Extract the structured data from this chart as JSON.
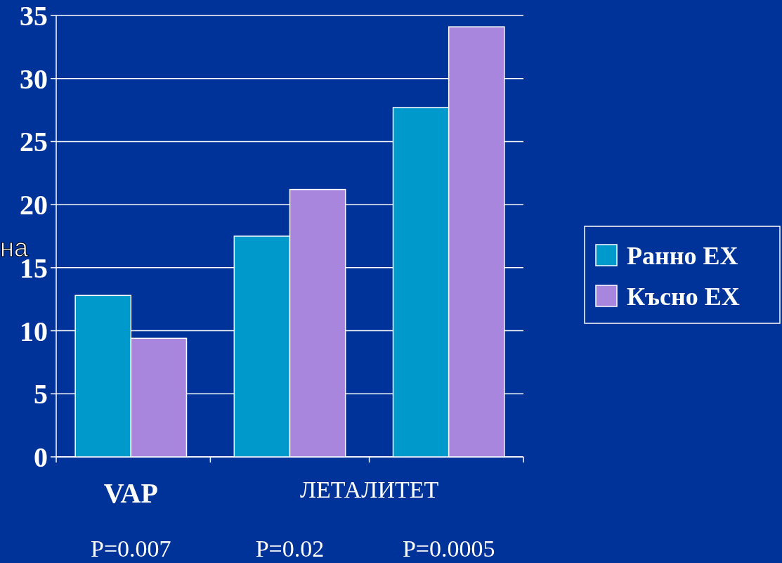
{
  "chart_data": {
    "type": "bar",
    "ylabel": "на",
    "categories": [
      "VAP",
      null,
      null
    ],
    "series": [
      {
        "name": "Ранно ЕХ",
        "color": "#0099cc",
        "values": [
          12.8,
          17.5,
          27.7
        ]
      },
      {
        "name": "Късно ЕХ",
        "color": "#a886de",
        "values": [
          9.4,
          21.2,
          34.1
        ]
      }
    ],
    "ylim": [
      0,
      35
    ],
    "yticks": [
      0,
      5,
      10,
      15,
      20,
      25,
      30,
      35
    ],
    "grid": "y",
    "legend": "right",
    "annotations": [
      "ЛЕТАЛИТЕТ",
      "P=0.007",
      "P=0.02",
      "P=0.0005"
    ]
  }
}
